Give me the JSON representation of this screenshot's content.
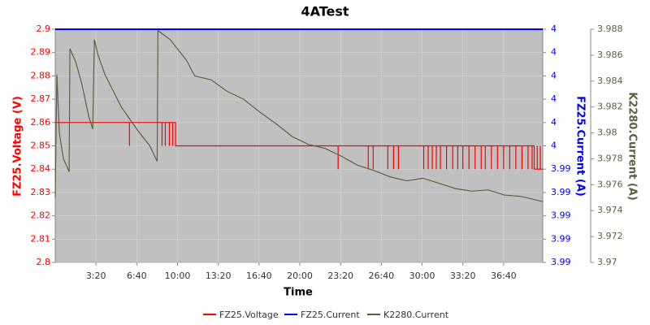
{
  "chart_data": {
    "type": "line",
    "title": "4ATest",
    "x_label": "Time",
    "xlim": [
      0,
      2392
    ],
    "xticks": [
      {
        "value": 200,
        "label": "3:20"
      },
      {
        "value": 400,
        "label": "6:40"
      },
      {
        "value": 600,
        "label": "10:00"
      },
      {
        "value": 800,
        "label": "13:20"
      },
      {
        "value": 1000,
        "label": "16:40"
      },
      {
        "value": 1200,
        "label": "20:00"
      },
      {
        "value": 1400,
        "label": "23:20"
      },
      {
        "value": 1600,
        "label": "26:40"
      },
      {
        "value": 1800,
        "label": "30:00"
      },
      {
        "value": 2000,
        "label": "33:20"
      },
      {
        "value": 2200,
        "label": "36:40"
      }
    ],
    "y_label": "FZ25.Voltage (V)",
    "ylim": [
      2.8,
      2.9
    ],
    "yticks": [
      2.8,
      2.81,
      2.82,
      2.83,
      2.84,
      2.85,
      2.86,
      2.87,
      2.88,
      2.89,
      2.9
    ],
    "y2_label": "FZ25.Current (A)",
    "y2lim": [
      3.99,
      4.0
    ],
    "y2ticks": [
      {
        "value": 4.0,
        "label": "4"
      },
      {
        "value": 3.999,
        "label": "4"
      },
      {
        "value": 3.998,
        "label": "4"
      },
      {
        "value": 3.997,
        "label": "4"
      },
      {
        "value": 3.996,
        "label": "4"
      },
      {
        "value": 3.995,
        "label": "4"
      },
      {
        "value": 3.994,
        "label": "3.99"
      },
      {
        "value": 3.993,
        "label": "3.99"
      },
      {
        "value": 3.992,
        "label": "3.99"
      },
      {
        "value": 3.991,
        "label": "3.99"
      },
      {
        "value": 3.99,
        "label": "3.99"
      }
    ],
    "y3_label": "K2280.Current (A)",
    "y3lim": [
      3.97,
      3.988
    ],
    "y3ticks": [
      3.97,
      3.972,
      3.974,
      3.976,
      3.978,
      3.98,
      3.982,
      3.984,
      3.986,
      3.988
    ],
    "grid": true,
    "series": [
      {
        "name": "FZ25.Voltage",
        "color": "#ff0000",
        "axis": "y",
        "x": [
          0,
          364,
          364,
          364,
          524,
          524,
          524,
          540,
          540,
          540,
          560,
          560,
          560,
          576,
          576,
          576,
          590,
          590,
          1388,
          1388,
          1388,
          1536,
          1536,
          1536,
          1560,
          1560,
          1560,
          1632,
          1632,
          1632,
          1660,
          1660,
          1660,
          1684,
          1684,
          1684,
          1808,
          1808,
          1808,
          1830,
          1830,
          1830,
          1850,
          1850,
          1850,
          1870,
          1870,
          1870,
          1890,
          1890,
          1890,
          1920,
          1920,
          1920,
          1950,
          1950,
          1950,
          1975,
          1975,
          1975,
          2000,
          2000,
          2000,
          2030,
          2030,
          2030,
          2060,
          2060,
          2060,
          2090,
          2090,
          2090,
          2110,
          2110,
          2110,
          2140,
          2140,
          2140,
          2170,
          2170,
          2170,
          2200,
          2200,
          2200,
          2230,
          2230,
          2230,
          2260,
          2260,
          2260,
          2290,
          2290,
          2290,
          2320,
          2320,
          2320,
          2340,
          2340,
          2340,
          2350,
          2350,
          2365,
          2365,
          2365,
          2380,
          2380,
          2380,
          2392
        ],
        "values": [
          2.86,
          2.86,
          2.85,
          2.86,
          2.86,
          2.85,
          2.86,
          2.86,
          2.85,
          2.86,
          2.86,
          2.85,
          2.86,
          2.86,
          2.85,
          2.86,
          2.86,
          2.85,
          2.85,
          2.84,
          2.85,
          2.85,
          2.84,
          2.85,
          2.85,
          2.84,
          2.85,
          2.85,
          2.84,
          2.85,
          2.85,
          2.84,
          2.85,
          2.85,
          2.84,
          2.85,
          2.85,
          2.84,
          2.85,
          2.85,
          2.84,
          2.85,
          2.85,
          2.84,
          2.85,
          2.85,
          2.84,
          2.85,
          2.85,
          2.84,
          2.85,
          2.85,
          2.84,
          2.85,
          2.85,
          2.84,
          2.85,
          2.85,
          2.84,
          2.85,
          2.85,
          2.84,
          2.85,
          2.85,
          2.84,
          2.85,
          2.85,
          2.84,
          2.85,
          2.85,
          2.84,
          2.85,
          2.85,
          2.84,
          2.85,
          2.85,
          2.84,
          2.85,
          2.85,
          2.84,
          2.85,
          2.85,
          2.84,
          2.85,
          2.85,
          2.84,
          2.85,
          2.85,
          2.84,
          2.85,
          2.85,
          2.84,
          2.85,
          2.85,
          2.84,
          2.85,
          2.85,
          2.84,
          2.85,
          2.85,
          2.84,
          2.84,
          2.85,
          2.84,
          2.84,
          2.85,
          2.84,
          2.84
        ]
      },
      {
        "name": "FZ25.Current",
        "color": "#0000ff",
        "axis": "y2",
        "x": [
          0,
          2392
        ],
        "values": [
          4.0,
          4.0
        ]
      },
      {
        "name": "K2280.Current",
        "color": "#5f5f3f",
        "axis": "y3",
        "x": [
          0,
          4,
          8,
          20,
          40,
          60,
          68,
          72,
          100,
          130,
          164,
          184,
          192,
          210,
          244,
          324,
          404,
          464,
          500,
          504,
          564,
          644,
          684,
          764,
          844,
          924,
          1004,
          1084,
          1164,
          1244,
          1324,
          1404,
          1484,
          1564,
          1644,
          1724,
          1804,
          1884,
          1964,
          2044,
          2124,
          2204,
          2284,
          2392
        ],
        "values": [
          3.975,
          3.98,
          3.9845,
          3.98,
          3.978,
          3.9773,
          3.977,
          3.9865,
          3.9855,
          3.9838,
          3.9813,
          3.9803,
          3.9872,
          3.986,
          3.9845,
          3.982,
          3.9802,
          3.979,
          3.9778,
          3.9879,
          3.9872,
          3.9856,
          3.9844,
          3.9841,
          3.9832,
          3.9826,
          3.9816,
          3.9807,
          3.9797,
          3.9791,
          3.9788,
          3.9782,
          3.9775,
          3.9771,
          3.9766,
          3.9763,
          3.9765,
          3.9761,
          3.9757,
          3.9755,
          3.9756,
          3.9752,
          3.9751,
          3.9747
        ]
      }
    ]
  }
}
